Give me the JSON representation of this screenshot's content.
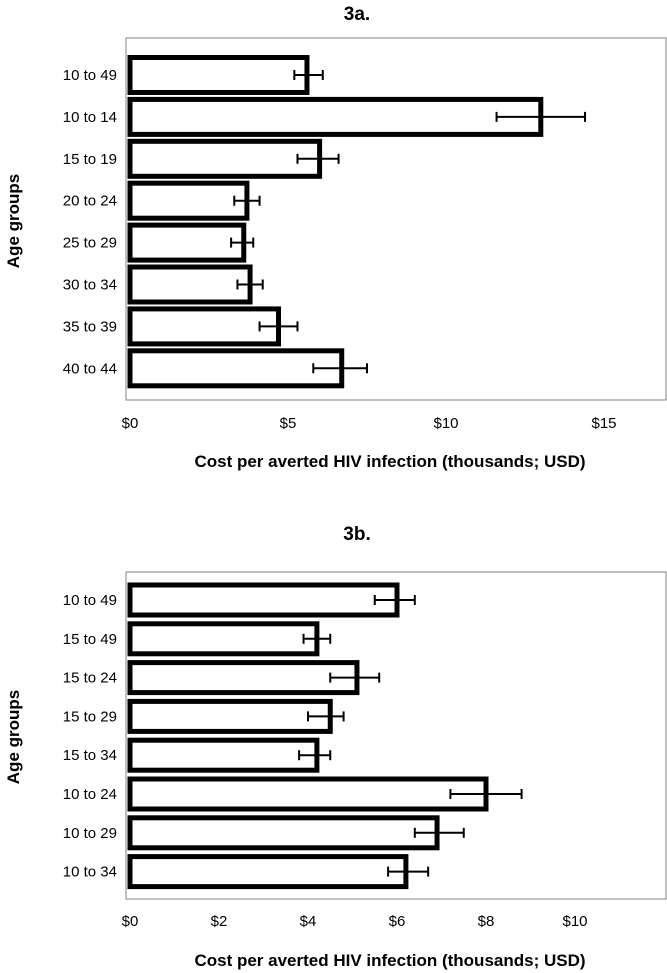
{
  "chart_data": [
    {
      "type": "bar",
      "orientation": "horizontal",
      "title": "3a.",
      "xlabel": "Cost per averted HIV infection (thousands;  USD)",
      "ylabel": "Age groups",
      "xlim": [
        0,
        17
      ],
      "xticks": [
        0,
        5,
        10,
        15
      ],
      "xtick_labels": [
        "$0",
        "$5",
        "$10",
        "$15"
      ],
      "categories": [
        "10 to 49",
        "10 to 14",
        "15 to 19",
        "20 to 24",
        "25 to 29",
        "30 to 34",
        "35 to 39",
        "40 to 44"
      ],
      "values": [
        5.6,
        13.0,
        6.0,
        3.7,
        3.6,
        3.8,
        4.7,
        6.7
      ],
      "error_low": [
        5.2,
        11.6,
        5.3,
        3.3,
        3.2,
        3.4,
        4.1,
        5.8
      ],
      "error_high": [
        6.1,
        14.4,
        6.6,
        4.1,
        3.9,
        4.2,
        5.3,
        7.5
      ],
      "grid": false,
      "legend": "none"
    },
    {
      "type": "bar",
      "orientation": "horizontal",
      "title": "3b.",
      "xlabel": "Cost per averted HIV infection (thousands;  USD)",
      "ylabel": "Age groups",
      "xlim": [
        0,
        12
      ],
      "xticks": [
        0,
        2,
        4,
        6,
        8,
        10
      ],
      "xtick_labels": [
        "$0",
        "$2",
        "$4",
        "$6",
        "$8",
        "$10"
      ],
      "categories": [
        "10 to 49",
        "15 to 49",
        "15 to 24",
        "15 to 29",
        "15 to 34",
        "10 to 24",
        "10 to 29",
        "10 to 34"
      ],
      "values": [
        6.0,
        4.2,
        5.1,
        4.5,
        4.2,
        8.0,
        6.9,
        6.2
      ],
      "error_low": [
        5.5,
        3.9,
        4.5,
        4.0,
        3.8,
        7.2,
        6.4,
        5.8
      ],
      "error_high": [
        6.4,
        4.5,
        5.6,
        4.8,
        4.5,
        8.8,
        7.5,
        6.7
      ],
      "grid": false,
      "legend": "none"
    }
  ]
}
